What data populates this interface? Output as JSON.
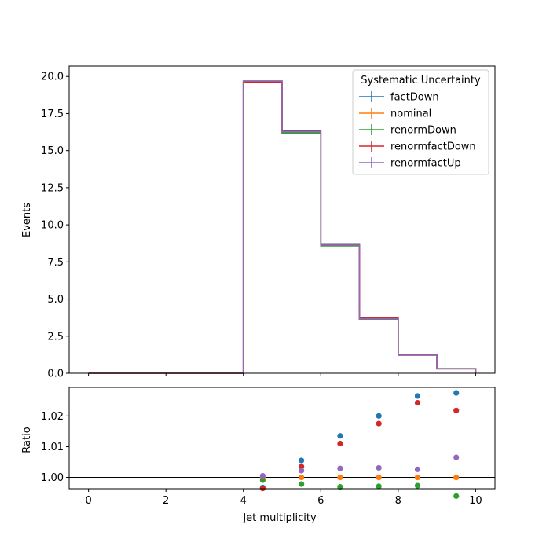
{
  "chart_data": [
    {
      "type": "line",
      "panel": "main",
      "step": true,
      "ylabel": "Events",
      "xlim": [
        -0.5,
        10.5
      ],
      "ylim": [
        0,
        20.7
      ],
      "xticks": [
        0,
        2,
        4,
        6,
        8,
        10
      ],
      "yticks": [
        "0.0",
        "2.5",
        "5.0",
        "7.5",
        "10.0",
        "12.5",
        "15.0",
        "17.5",
        "20.0"
      ],
      "bin_edges": [
        0,
        1,
        2,
        3,
        4,
        5,
        6,
        7,
        8,
        9,
        10
      ],
      "legend": {
        "title": "Systematic Uncertainty",
        "placement": "top-right"
      },
      "series": [
        {
          "name": "factDown",
          "color": "#1f77b4",
          "values": [
            0,
            0,
            0,
            0,
            19.62,
            16.32,
            8.72,
            3.72,
            1.25,
            0.31
          ]
        },
        {
          "name": "nominal",
          "color": "#ff7f0e",
          "values": [
            0,
            0,
            0,
            0,
            19.69,
            16.23,
            8.6,
            3.65,
            1.22,
            0.3
          ]
        },
        {
          "name": "renormDown",
          "color": "#2ca02c",
          "values": [
            0,
            0,
            0,
            0,
            19.67,
            16.19,
            8.58,
            3.64,
            1.22,
            0.3
          ]
        },
        {
          "name": "renormfactDown",
          "color": "#d62728",
          "values": [
            0,
            0,
            0,
            0,
            19.61,
            16.29,
            8.7,
            3.71,
            1.25,
            0.31
          ]
        },
        {
          "name": "renormfactUp",
          "color": "#9467bd",
          "values": [
            0,
            0,
            0,
            0,
            19.7,
            16.27,
            8.63,
            3.66,
            1.22,
            0.3
          ]
        }
      ]
    },
    {
      "type": "scatter",
      "panel": "ratio",
      "xlabel": "Jet multiplicity",
      "ylabel": "Ratio",
      "xlim": [
        -0.5,
        10.5
      ],
      "ylim": [
        0.9963,
        1.0293
      ],
      "xticks": [
        0,
        2,
        4,
        6,
        8,
        10
      ],
      "yticks": [
        "1.00",
        "1.01",
        "1.02"
      ],
      "reference_line": 1.0,
      "x": [
        4.5,
        5.5,
        6.5,
        7.5,
        8.5,
        9.5
      ],
      "series": [
        {
          "name": "factDown",
          "color": "#1f77b4",
          "values": [
            0.9967,
            1.0055,
            1.0135,
            1.02,
            1.0265,
            1.0275
          ]
        },
        {
          "name": "nominal",
          "color": "#ff7f0e",
          "values": [
            1.0,
            1.0,
            1.0,
            1.0,
            1.0,
            1.0
          ]
        },
        {
          "name": "renormDown",
          "color": "#2ca02c",
          "values": [
            0.9991,
            0.9978,
            0.9969,
            0.9971,
            0.9973,
            0.9939
          ]
        },
        {
          "name": "renormfactDown",
          "color": "#d62728",
          "values": [
            0.9964,
            1.0035,
            1.011,
            1.0175,
            1.0243,
            1.0218
          ]
        },
        {
          "name": "renormfactUp",
          "color": "#9467bd",
          "values": [
            1.0005,
            1.0022,
            1.0029,
            1.0031,
            1.0026,
            1.0065
          ]
        }
      ]
    }
  ]
}
